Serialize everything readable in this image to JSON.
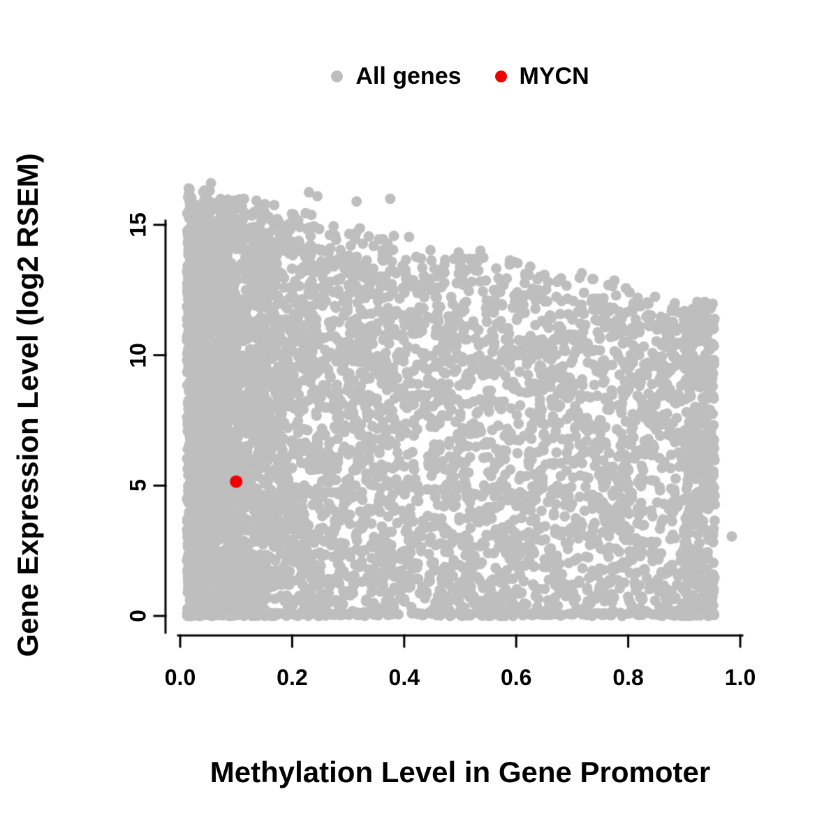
{
  "chart_data": {
    "type": "scatter",
    "title": "",
    "xlabel": "Methylation Level in Gene Promoter",
    "ylabel": "Gene Expression Level (log2 RSEM)",
    "xlim": [
      0,
      1
    ],
    "ylim": [
      0,
      16.8
    ],
    "x_tick_values": [
      0,
      0.2,
      0.4,
      0.6,
      0.8,
      1.0
    ],
    "x_tick_labels": [
      "0.0",
      "0.2",
      "0.4",
      "0.6",
      "0.8",
      "1.0"
    ],
    "y_tick_values": [
      0,
      5,
      10,
      15
    ],
    "y_tick_labels": [
      "0",
      "5",
      "10",
      "15"
    ],
    "grid": false,
    "legend_position": "top-center",
    "series": [
      {
        "name": "All genes",
        "color": "#bebebe",
        "marker": "filled-circle",
        "description": "Dense cloud of thousands of genes. Methylation spans ~0.01-0.96, expression spans 0-16.6. Upper envelope of expression declines with increasing promoter methylation: ~16.6 at x=0 down to ~12 at x=0.95. Densest near x<0.15 and along the y=0 baseline.",
        "generator": {
          "seed": 1337,
          "n": 6200,
          "x_min": 0.012,
          "x_max": 0.955,
          "left_cluster_weight": 0.34,
          "left_cluster_scale": 0.09,
          "right_cluster_weight": 0.05,
          "dense_top_at_0": 14.6,
          "dense_top_slope": -3.8,
          "sparse_top_at_0": 16.6,
          "sparse_top_slope": -4.8,
          "sparse_fraction": 0.07,
          "baseline_fraction": 0.05,
          "point_radius": 7.5
        },
        "outliers": [
          [
            0.985,
            3.05
          ],
          [
            0.055,
            16.6
          ],
          [
            0.23,
            16.25
          ],
          [
            0.245,
            16.1
          ],
          [
            0.375,
            16.0
          ],
          [
            0.315,
            15.9
          ]
        ]
      },
      {
        "name": "MYCN",
        "color": "#ee0000",
        "marker": "filled-circle",
        "points": [
          [
            0.1,
            5.15
          ]
        ],
        "point_radius": 9
      }
    ]
  }
}
